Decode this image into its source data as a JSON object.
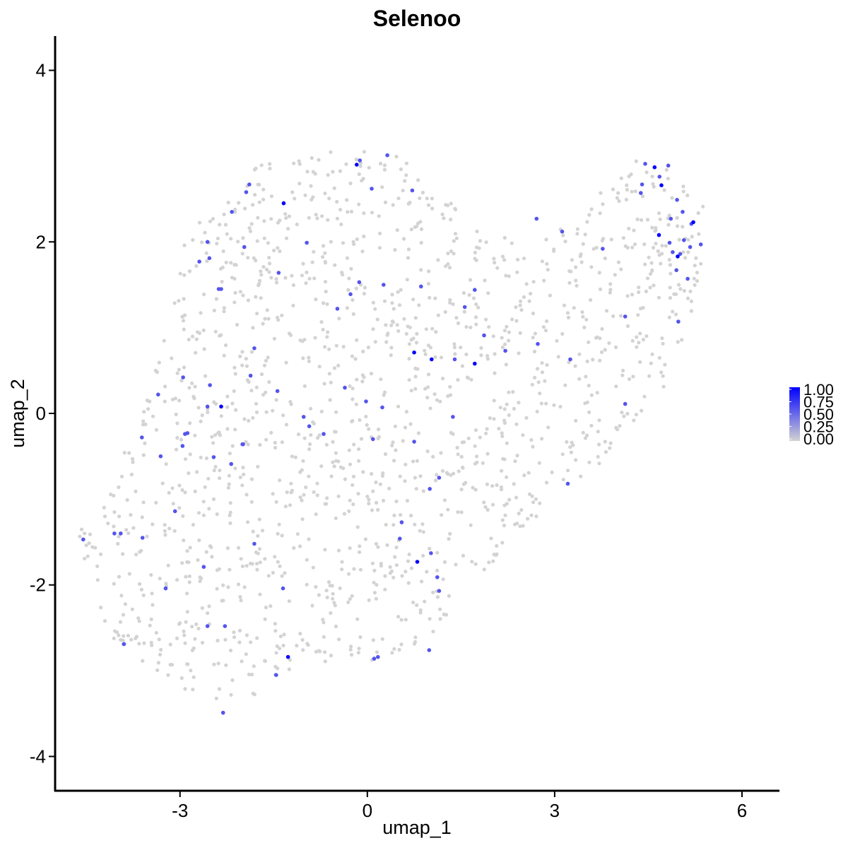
{
  "chart_data": {
    "type": "scatter",
    "title": "Selenoo",
    "xlabel": "umap_1",
    "ylabel": "umap_2",
    "xlim": [
      -5.0,
      6.6
    ],
    "ylim": [
      -4.4,
      4.4
    ],
    "x_ticks": [
      -3,
      0,
      3,
      6
    ],
    "x_tick_labels": [
      "-3",
      "0",
      "3",
      "6"
    ],
    "y_ticks": [
      -4,
      -2,
      0,
      2,
      4
    ],
    "y_tick_labels": [
      "-4",
      "-2",
      "0",
      "2",
      "4"
    ],
    "grid": false,
    "legend": {
      "placement": "right",
      "type": "colorbar",
      "ticks": [
        1.0,
        0.75,
        0.5,
        0.25,
        0.0
      ],
      "tick_labels": [
        "1.00",
        "0.75",
        "0.50",
        "0.25",
        "0.00"
      ],
      "color_low": "#d3d3d3",
      "color_high": "#0000ff"
    },
    "background_color": "#d3d3d3",
    "background_cells": 1500,
    "points": [
      {
        "x": -0.17,
        "y": 2.9,
        "v": 1.0
      },
      {
        "x": -1.34,
        "y": 2.45,
        "v": 1.0
      },
      {
        "x": 4.6,
        "y": 2.87,
        "v": 1.0
      },
      {
        "x": 4.71,
        "y": 2.66,
        "v": 1.0
      },
      {
        "x": 5.22,
        "y": 2.23,
        "v": 1.0
      },
      {
        "x": 4.67,
        "y": 2.08,
        "v": 1.0
      },
      {
        "x": 4.97,
        "y": 1.83,
        "v": 1.0
      },
      {
        "x": 0.75,
        "y": 0.71,
        "v": 1.0
      },
      {
        "x": 1.03,
        "y": 0.63,
        "v": 1.0
      },
      {
        "x": 1.72,
        "y": 0.58,
        "v": 1.0
      },
      {
        "x": -2.34,
        "y": 0.08,
        "v": 1.0
      },
      {
        "x": 0.8,
        "y": -1.73,
        "v": 1.0
      },
      {
        "x": -1.27,
        "y": -2.84,
        "v": 1.0
      },
      {
        "x": -0.12,
        "y": 2.95,
        "v": 0.6
      },
      {
        "x": 0.32,
        "y": 3.01,
        "v": 0.6
      },
      {
        "x": 0.07,
        "y": 2.62,
        "v": 0.6
      },
      {
        "x": 0.72,
        "y": 2.6,
        "v": 0.6
      },
      {
        "x": -1.89,
        "y": 2.67,
        "v": 0.6
      },
      {
        "x": -1.94,
        "y": 2.58,
        "v": 0.6
      },
      {
        "x": -2.17,
        "y": 2.35,
        "v": 0.6
      },
      {
        "x": -2.56,
        "y": 2.0,
        "v": 0.6
      },
      {
        "x": -1.97,
        "y": 1.94,
        "v": 0.6
      },
      {
        "x": -0.97,
        "y": 1.99,
        "v": 0.6
      },
      {
        "x": -2.69,
        "y": 1.77,
        "v": 0.6
      },
      {
        "x": -2.53,
        "y": 1.81,
        "v": 0.6
      },
      {
        "x": -1.42,
        "y": 1.64,
        "v": 0.6
      },
      {
        "x": -0.13,
        "y": 1.53,
        "v": 0.6
      },
      {
        "x": 0.26,
        "y": 1.5,
        "v": 0.6
      },
      {
        "x": 0.86,
        "y": 1.48,
        "v": 0.6
      },
      {
        "x": 1.72,
        "y": 1.44,
        "v": 0.6
      },
      {
        "x": -2.38,
        "y": 1.45,
        "v": 0.6
      },
      {
        "x": -2.34,
        "y": 1.45,
        "v": 0.6
      },
      {
        "x": -0.27,
        "y": 1.39,
        "v": 0.6
      },
      {
        "x": -0.48,
        "y": 1.22,
        "v": 0.6
      },
      {
        "x": 1.56,
        "y": 1.24,
        "v": 0.6
      },
      {
        "x": 4.13,
        "y": 1.13,
        "v": 0.6
      },
      {
        "x": 4.98,
        "y": 1.07,
        "v": 0.6
      },
      {
        "x": 1.87,
        "y": 0.91,
        "v": 0.6
      },
      {
        "x": 2.73,
        "y": 0.81,
        "v": 0.6
      },
      {
        "x": -1.81,
        "y": 0.76,
        "v": 0.6
      },
      {
        "x": 2.21,
        "y": 0.73,
        "v": 0.6
      },
      {
        "x": 1.4,
        "y": 0.63,
        "v": 0.6
      },
      {
        "x": 3.25,
        "y": 0.63,
        "v": 0.6
      },
      {
        "x": -2.95,
        "y": 0.42,
        "v": 0.6
      },
      {
        "x": -1.87,
        "y": 0.44,
        "v": 0.6
      },
      {
        "x": -2.52,
        "y": 0.33,
        "v": 0.6
      },
      {
        "x": -0.36,
        "y": 0.3,
        "v": 0.6
      },
      {
        "x": -1.44,
        "y": 0.26,
        "v": 0.6
      },
      {
        "x": -3.35,
        "y": 0.22,
        "v": 0.6
      },
      {
        "x": -0.02,
        "y": 0.14,
        "v": 0.6
      },
      {
        "x": -2.56,
        "y": 0.08,
        "v": 0.6
      },
      {
        "x": 0.24,
        "y": 0.07,
        "v": 0.6
      },
      {
        "x": 4.13,
        "y": 0.11,
        "v": 0.6
      },
      {
        "x": -1.02,
        "y": -0.04,
        "v": 0.6
      },
      {
        "x": 1.37,
        "y": -0.04,
        "v": 0.6
      },
      {
        "x": -2.88,
        "y": -0.23,
        "v": 0.6
      },
      {
        "x": -2.92,
        "y": -0.24,
        "v": 0.6
      },
      {
        "x": -0.93,
        "y": -0.15,
        "v": 0.6
      },
      {
        "x": -0.7,
        "y": -0.24,
        "v": 0.6
      },
      {
        "x": -3.61,
        "y": -0.28,
        "v": 0.6
      },
      {
        "x": -2.96,
        "y": -0.38,
        "v": 0.6
      },
      {
        "x": -1.99,
        "y": -0.36,
        "v": 0.6
      },
      {
        "x": -2.0,
        "y": -0.36,
        "v": 0.6
      },
      {
        "x": 0.09,
        "y": -0.3,
        "v": 0.6
      },
      {
        "x": 0.75,
        "y": -0.33,
        "v": 0.6
      },
      {
        "x": -3.31,
        "y": -0.5,
        "v": 0.6
      },
      {
        "x": -2.46,
        "y": -0.51,
        "v": 0.6
      },
      {
        "x": -2.18,
        "y": -0.59,
        "v": 0.6
      },
      {
        "x": 1.15,
        "y": -0.75,
        "v": 0.6
      },
      {
        "x": 3.21,
        "y": -0.82,
        "v": 0.6
      },
      {
        "x": 1.0,
        "y": -0.88,
        "v": 0.6
      },
      {
        "x": -3.08,
        "y": -1.14,
        "v": 0.6
      },
      {
        "x": 0.55,
        "y": -1.27,
        "v": 0.6
      },
      {
        "x": -4.05,
        "y": -1.4,
        "v": 0.6
      },
      {
        "x": -3.95,
        "y": -1.4,
        "v": 0.6
      },
      {
        "x": -3.6,
        "y": -1.45,
        "v": 0.6
      },
      {
        "x": -4.55,
        "y": -1.47,
        "v": 0.6
      },
      {
        "x": 0.52,
        "y": -1.46,
        "v": 0.6
      },
      {
        "x": -1.81,
        "y": -1.52,
        "v": 0.6
      },
      {
        "x": 1.02,
        "y": -1.63,
        "v": 0.6
      },
      {
        "x": -2.62,
        "y": -1.79,
        "v": 0.6
      },
      {
        "x": 1.12,
        "y": -1.91,
        "v": 0.6
      },
      {
        "x": -3.23,
        "y": -2.04,
        "v": 0.6
      },
      {
        "x": -1.35,
        "y": -2.04,
        "v": 0.6
      },
      {
        "x": 1.15,
        "y": -2.07,
        "v": 0.6
      },
      {
        "x": -2.56,
        "y": -2.48,
        "v": 0.6
      },
      {
        "x": -2.28,
        "y": -2.48,
        "v": 0.6
      },
      {
        "x": -3.9,
        "y": -2.69,
        "v": 0.6
      },
      {
        "x": 0.99,
        "y": -2.76,
        "v": 0.6
      },
      {
        "x": 0.17,
        "y": -2.84,
        "v": 0.6
      },
      {
        "x": 0.11,
        "y": -2.86,
        "v": 0.6
      },
      {
        "x": -1.46,
        "y": -3.05,
        "v": 0.6
      },
      {
        "x": -2.31,
        "y": -3.49,
        "v": 0.6
      },
      {
        "x": 2.71,
        "y": 2.27,
        "v": 0.6
      },
      {
        "x": 3.12,
        "y": 2.12,
        "v": 0.6
      },
      {
        "x": 3.77,
        "y": 1.92,
        "v": 0.6
      },
      {
        "x": 4.45,
        "y": 2.91,
        "v": 0.6
      },
      {
        "x": 4.82,
        "y": 2.89,
        "v": 0.6
      },
      {
        "x": 4.4,
        "y": 2.67,
        "v": 0.6
      },
      {
        "x": 4.68,
        "y": 2.76,
        "v": 0.6
      },
      {
        "x": 4.38,
        "y": 2.57,
        "v": 0.6
      },
      {
        "x": 4.96,
        "y": 2.49,
        "v": 0.6
      },
      {
        "x": 5.05,
        "y": 2.35,
        "v": 0.6
      },
      {
        "x": 4.86,
        "y": 2.27,
        "v": 0.6
      },
      {
        "x": 5.19,
        "y": 2.21,
        "v": 0.6
      },
      {
        "x": 5.07,
        "y": 2.02,
        "v": 0.6
      },
      {
        "x": 5.34,
        "y": 1.97,
        "v": 0.6
      },
      {
        "x": 4.84,
        "y": 1.99,
        "v": 0.6
      },
      {
        "x": 5.17,
        "y": 1.94,
        "v": 0.6
      },
      {
        "x": 4.89,
        "y": 1.88,
        "v": 0.6
      },
      {
        "x": 5.01,
        "y": 1.86,
        "v": 0.6
      },
      {
        "x": 4.95,
        "y": 1.67,
        "v": 0.6
      },
      {
        "x": 5.13,
        "y": 1.57,
        "v": 0.6
      }
    ]
  }
}
